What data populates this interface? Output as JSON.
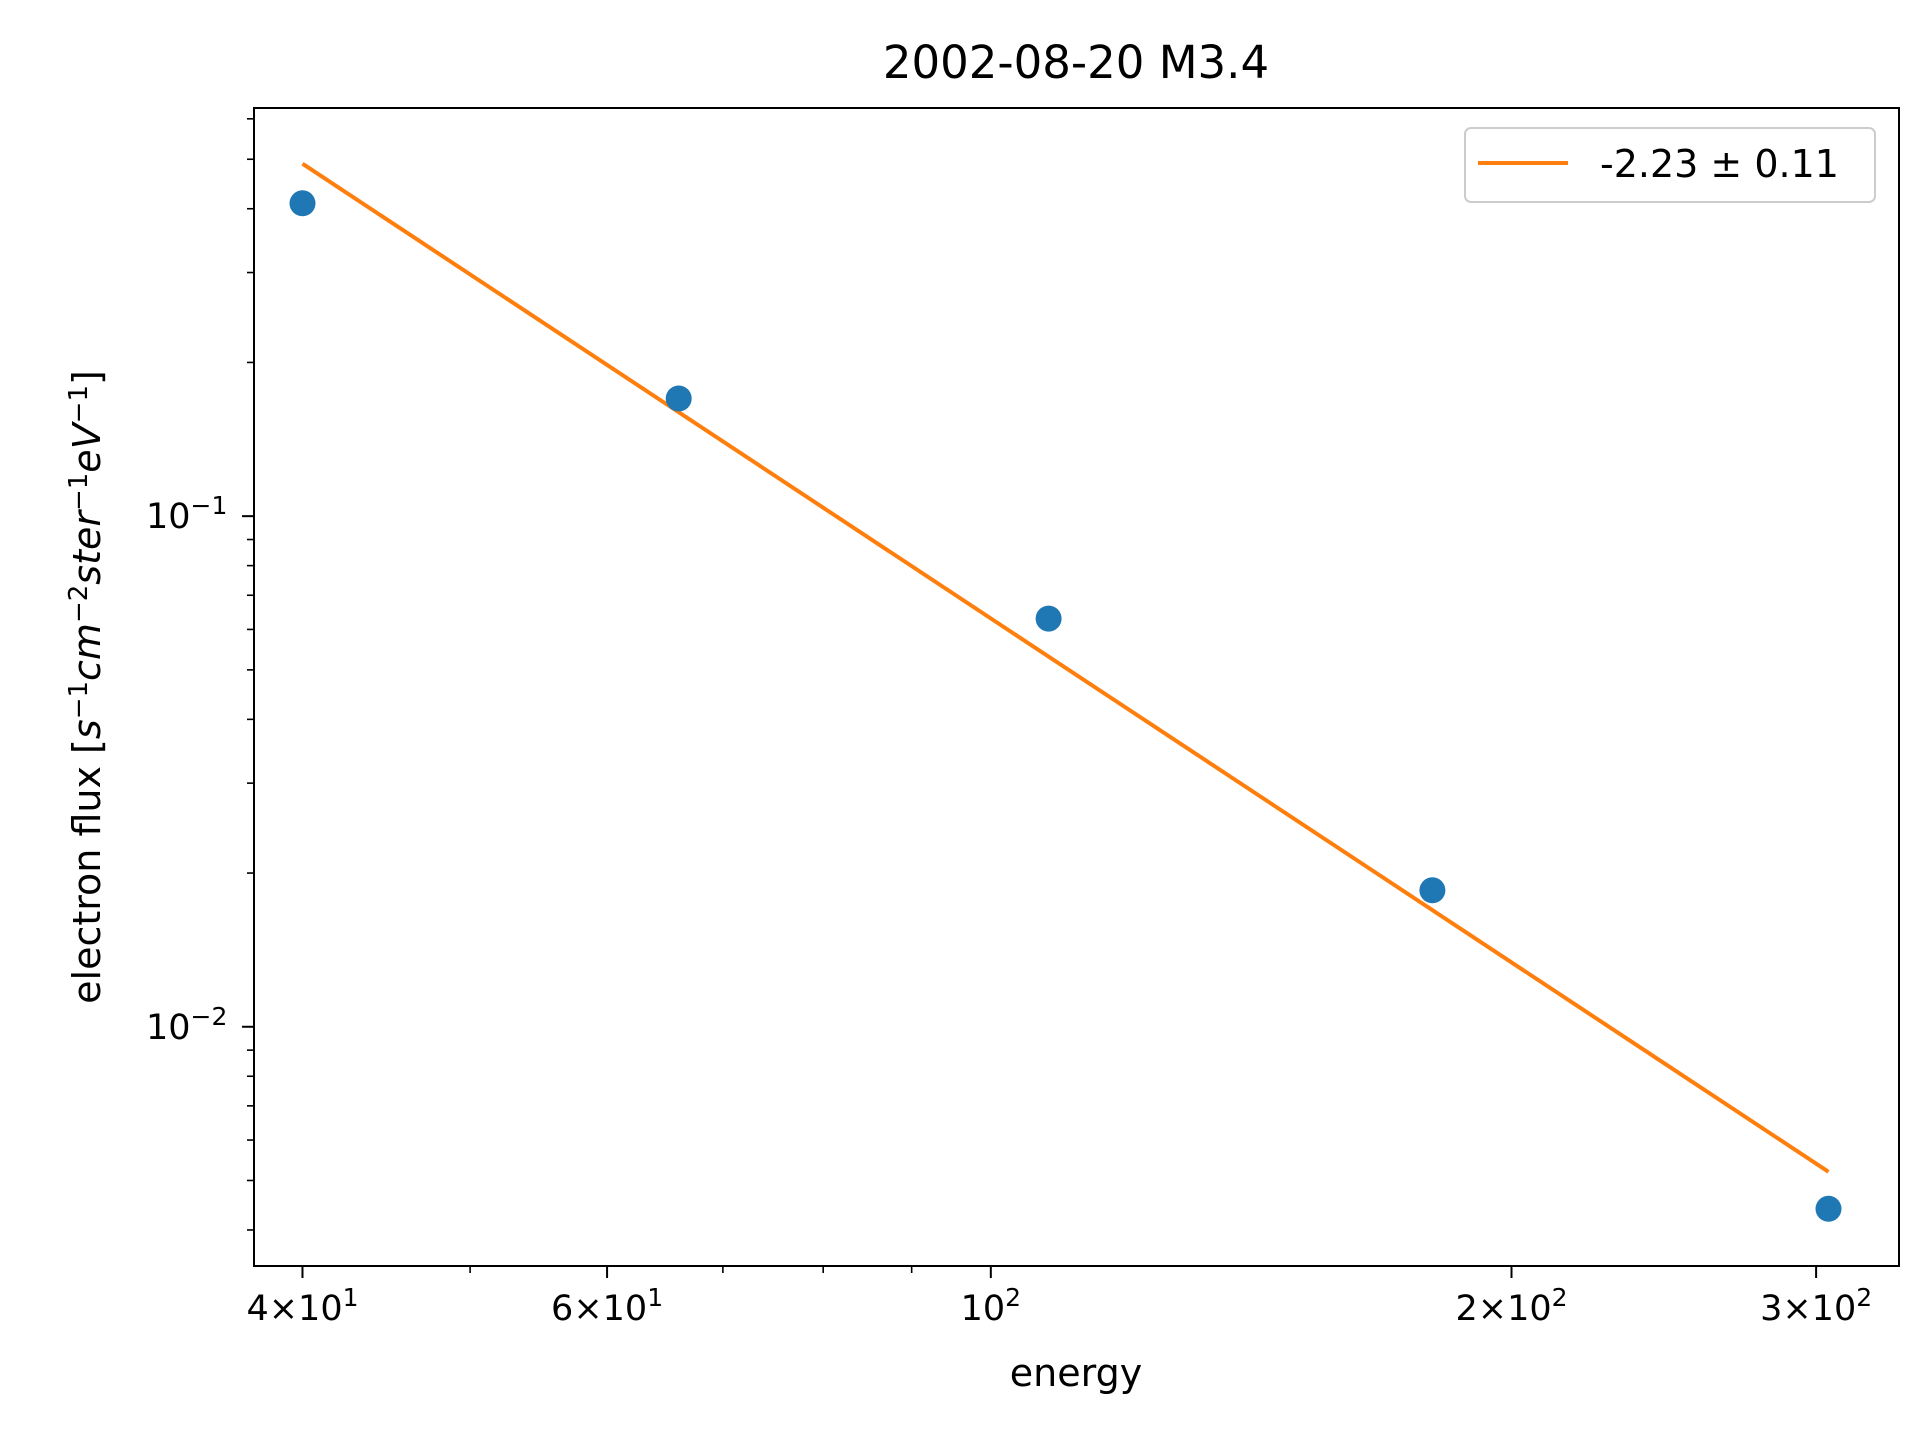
{
  "chart_data": {
    "type": "scatter",
    "title": "2002-08-20 M3.4",
    "xlabel": "energy",
    "ylabel": "electron flux [s⁻¹cm⁻²ster⁻¹eV⁻¹]",
    "xscale": "log",
    "yscale": "log",
    "xlim": [
      37.5,
      335
    ],
    "ylim": [
      0.0034,
      0.63
    ],
    "x_ticks": [
      {
        "value": 40,
        "label_base": "4×10",
        "label_exp": "1"
      },
      {
        "value": 60,
        "label_base": "6×10",
        "label_exp": "1"
      },
      {
        "value": 100,
        "label_base": "10",
        "label_exp": "2"
      },
      {
        "value": 200,
        "label_base": "2×10",
        "label_exp": "2"
      },
      {
        "value": 300,
        "label_base": "3×10",
        "label_exp": "2"
      }
    ],
    "y_ticks": [
      {
        "value": 0.1,
        "label_base": "10",
        "label_exp": "−1"
      },
      {
        "value": 0.01,
        "label_base": "10",
        "label_exp": "−2"
      }
    ],
    "series": [
      {
        "kind": "scatter",
        "color": "#1f77b4",
        "x": [
          40,
          66,
          108,
          180,
          305
        ],
        "y": [
          0.41,
          0.17,
          0.063,
          0.0185,
          0.0044
        ]
      },
      {
        "kind": "line",
        "name": "-2.23 ± 0.11",
        "color": "#ff7f0e",
        "x": [
          40,
          305
        ],
        "y": [
          0.49,
          0.0052
        ]
      }
    ],
    "legend_position": "top-right",
    "grid": false
  }
}
